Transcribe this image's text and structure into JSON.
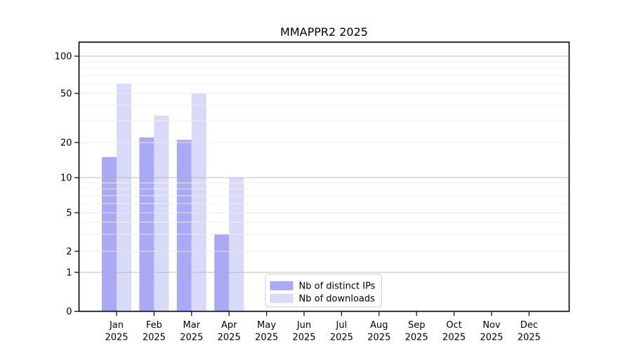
{
  "chart_data": {
    "type": "bar",
    "title": "MMAPPR2 2025",
    "x_months": [
      "Jan",
      "Feb",
      "Mar",
      "Apr",
      "May",
      "Jun",
      "Jul",
      "Aug",
      "Sep",
      "Oct",
      "Nov",
      "Dec"
    ],
    "x_year": "2025",
    "series": [
      {
        "name": "Nb of distinct IPs",
        "color": "#a9a9f6",
        "values": [
          15,
          22,
          21,
          3,
          0,
          0,
          0,
          0,
          0,
          0,
          0,
          0
        ]
      },
      {
        "name": "Nb of downloads",
        "color": "#d9d9f8",
        "values": [
          60,
          33,
          50,
          10,
          0,
          0,
          0,
          0,
          0,
          0,
          0,
          0
        ]
      }
    ],
    "y_ticks": [
      0,
      1,
      2,
      5,
      10,
      20,
      50,
      100
    ],
    "y_minor_gridlines": [
      3,
      4,
      6,
      7,
      8,
      9,
      30,
      40,
      60,
      70,
      80,
      90
    ],
    "y_scale": "pseudo-log",
    "ylim": [
      0,
      130
    ],
    "grid": true,
    "legend_position": "lower center",
    "colors": {
      "decade_gridline": "#b2b2b2",
      "minor_gridline": "#efefef",
      "sub_major_gridline": "#e9e9e9",
      "axis": "#000000",
      "legend_border": "#cccccc"
    }
  }
}
